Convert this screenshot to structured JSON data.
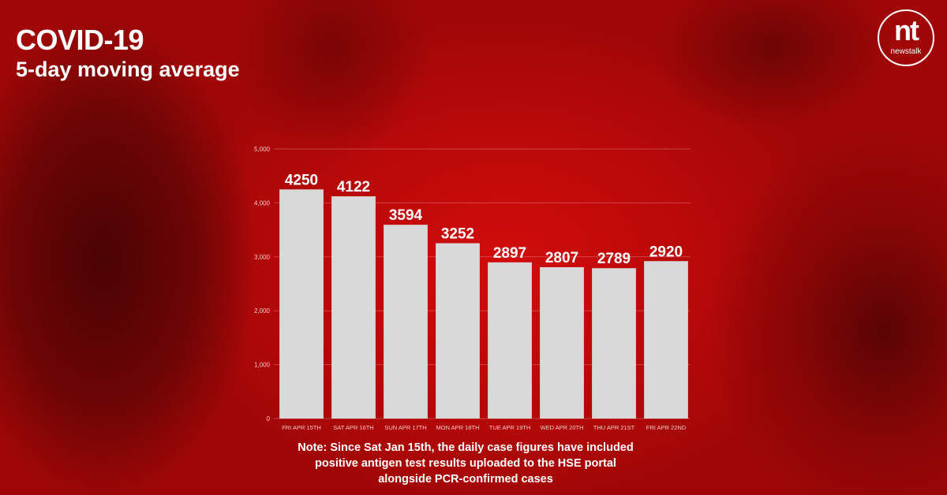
{
  "header": {
    "title": "COVID-19",
    "subtitle": "5-day moving average"
  },
  "logo": {
    "mark": "nt",
    "word": "newstalk"
  },
  "note": {
    "line1": "Note: Since Sat Jan 15th, the daily case figures have included",
    "line2": "positive antigen test results uploaded to the HSE portal",
    "line3": "alongside PCR-confirmed cases"
  },
  "colors": {
    "bar": "#d9d9d9",
    "gridline": "#d86a6a",
    "tick_label": "#f2c9c9",
    "data_label": "#ffffff"
  },
  "chart_data": {
    "type": "bar",
    "title": "COVID-19",
    "subtitle": "5-day moving average",
    "xlabel": "",
    "ylabel": "",
    "categories": [
      "FRI APR 15TH",
      "SAT APR 16TH",
      "SUN APR 17TH",
      "MON APR 18TH",
      "TUE APR 19TH",
      "WED APR 20TH",
      "THU APR 21ST",
      "FRI APR 22ND"
    ],
    "values": [
      4250,
      4122,
      3594,
      3252,
      2897,
      2807,
      2789,
      2920
    ],
    "ylim": [
      0,
      5000
    ],
    "yticks": [
      0,
      1000,
      2000,
      3000,
      4000,
      5000
    ],
    "ytick_labels": [
      "0",
      "1,000",
      "2,000",
      "3,000",
      "4,000",
      "5,000"
    ],
    "grid": true,
    "legend": "none"
  }
}
